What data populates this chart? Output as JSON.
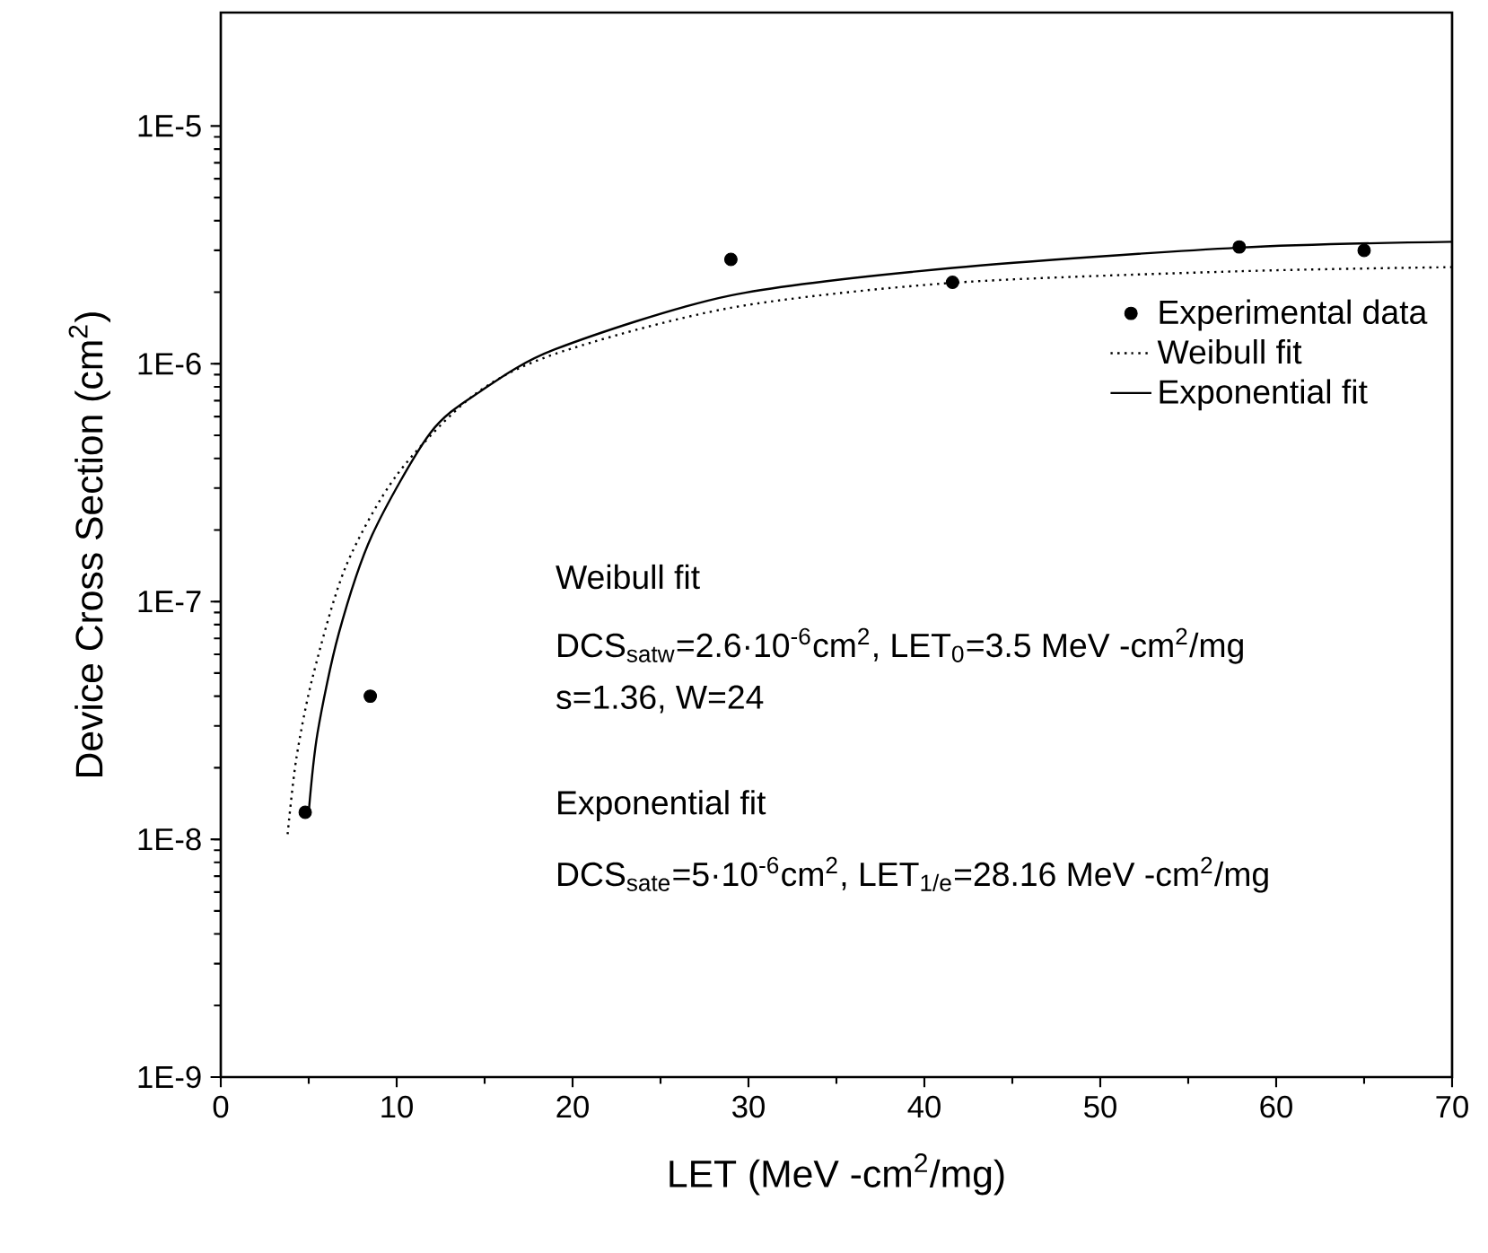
{
  "chart_data": {
    "type": "scatter",
    "xlabel": "LET (MeV -cm$^{2}$/mg)",
    "ylabel": "Device Cross Section (cm$^{2}$)",
    "xlim": [
      0,
      70
    ],
    "xticks": [
      0,
      10,
      20,
      30,
      40,
      50,
      60,
      70
    ],
    "ylim": [
      1e-09,
      3e-05
    ],
    "yticks": [
      {
        "value": 1e-09,
        "label": "1E-9"
      },
      {
        "value": 1e-08,
        "label": "1E-8"
      },
      {
        "value": 1e-07,
        "label": "1E-7"
      },
      {
        "value": 1e-06,
        "label": "1E-6"
      },
      {
        "value": 1e-05,
        "label": "1E-5"
      }
    ],
    "log": "y",
    "grid": false,
    "legend": "right",
    "series": [
      {
        "name": "Experimental data",
        "marker": "circle",
        "color": "#000000",
        "x": [
          4.8,
          8.5,
          29,
          41.6,
          57.9,
          65
        ],
        "values": [
          1.3e-08,
          4e-08,
          2.75e-06,
          2.2e-06,
          3.1e-06,
          3e-06
        ]
      },
      {
        "name": "Weibull fit",
        "type": "line",
        "marker": "none",
        "line_style": "dotted",
        "color": "#000000",
        "x": [
          3.8,
          4.3,
          5.25,
          7.1,
          10,
          14.3,
          19,
          29,
          41.6,
          57.9,
          70
        ],
        "values": [
          1.05e-08,
          2.2e-08,
          4.9e-08,
          1.4e-07,
          3.4e-07,
          7.3e-07,
          1.1e-06,
          1.72e-06,
          2.19e-06,
          2.45e-06,
          2.55e-06
        ]
      },
      {
        "name": "Exponential fit",
        "type": "line",
        "marker": "none",
        "line_style": "solid",
        "color": "#000000",
        "x": [
          5.0,
          5.5,
          6.7,
          8.6,
          11.9,
          14.7,
          19,
          29,
          41.6,
          57.9,
          70
        ],
        "values": [
          1.3e-08,
          2.8e-08,
          7.3e-08,
          1.9e-07,
          5.1e-07,
          7.6e-07,
          1.15e-06,
          1.94e-06,
          2.53e-06,
          3.08e-06,
          3.26e-06
        ]
      }
    ],
    "annotations": [
      "Weibull fit",
      "DCS$_{satw}$=2.6·10$^{-6}$cm$^{2}$, LET$_{0}$=3.5 MeV -cm$^{2}$/mg",
      "s=1.36, W=24",
      "Exponential fit",
      "DCS$_{sate}$=5·10$^{-6}$cm$^{2}$, LET$_{1/e}$=28.16 MeV -cm$^{2}$/mg"
    ]
  }
}
